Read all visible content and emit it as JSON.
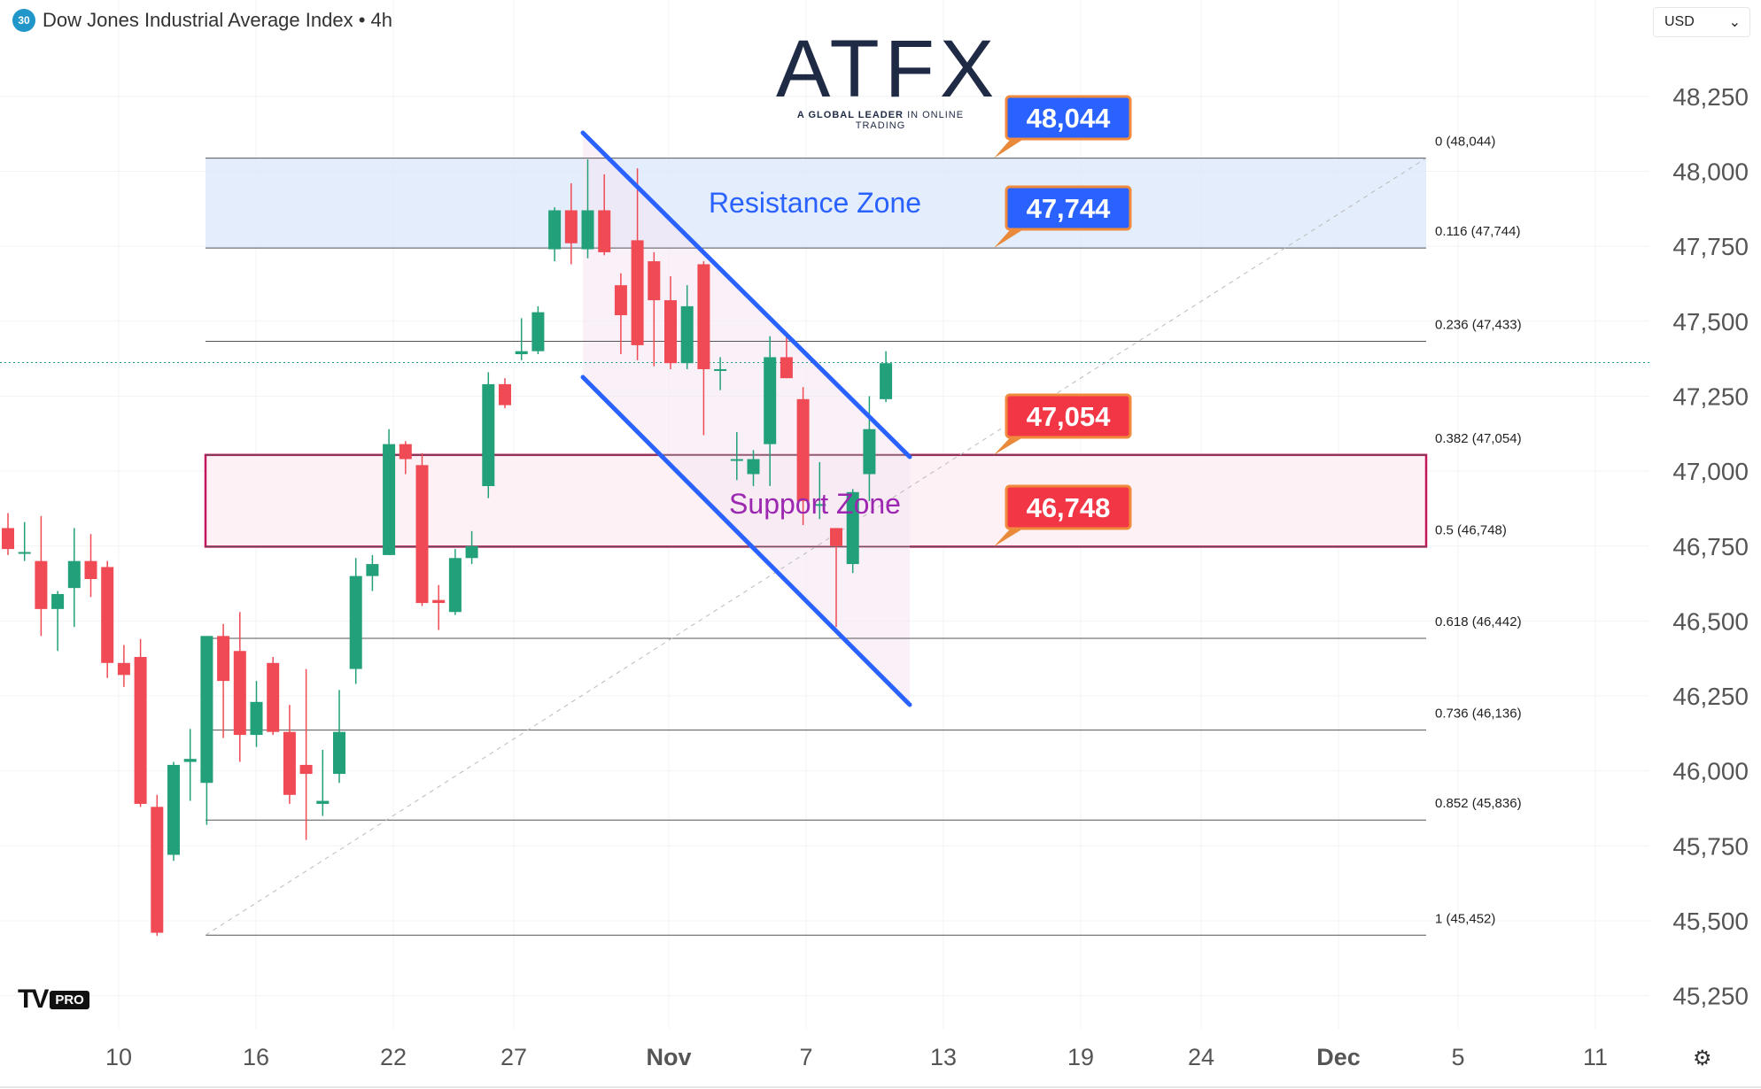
{
  "header": {
    "badge": "30",
    "symbol": "Dow Jones Industrial Average Index • 4h"
  },
  "currency": {
    "label": "USD"
  },
  "logo": {
    "wordmark": "ATFX",
    "tagline_bold": "A GLOBAL LEADER",
    "tagline_rest": " IN ONLINE TRADING"
  },
  "brand": {
    "tv_pro": "PRO"
  },
  "colors": {
    "up": "#22a079",
    "down": "#f04a55",
    "price_blue": "#2962ff",
    "price_red": "#f23645",
    "resistance_fill": "#dbe7fb",
    "support_border": "#c2185b",
    "support_fill": "#fdf1f5",
    "channel": "#2962ff",
    "support_text": "#9c27b0",
    "resistance_text": "#2962ff"
  },
  "chart_data": {
    "type": "candlestick",
    "timeframe": "4h",
    "y_axis": {
      "ticks": [
        48250,
        48000,
        47750,
        47500,
        47250,
        47000,
        46750,
        46500,
        46250,
        46000,
        45750,
        45500,
        45250
      ]
    },
    "x_axis": {
      "ticks": [
        "10",
        "16",
        "22",
        "27",
        "Nov",
        "7",
        "13",
        "19",
        "24",
        "Dec",
        "5",
        "11"
      ]
    },
    "candles": [
      {
        "o": 46810,
        "h": 46860,
        "l": 46720,
        "c": 46740
      },
      {
        "o": 46730,
        "h": 46830,
        "l": 46700,
        "c": 46730
      },
      {
        "o": 46700,
        "h": 46850,
        "l": 46450,
        "c": 46540
      },
      {
        "o": 46540,
        "h": 46600,
        "l": 46400,
        "c": 46590
      },
      {
        "o": 46610,
        "h": 46810,
        "l": 46480,
        "c": 46700
      },
      {
        "o": 46700,
        "h": 46790,
        "l": 46580,
        "c": 46640
      },
      {
        "o": 46680,
        "h": 46700,
        "l": 46310,
        "c": 46360
      },
      {
        "o": 46360,
        "h": 46420,
        "l": 46280,
        "c": 46320
      },
      {
        "o": 46380,
        "h": 46440,
        "l": 45880,
        "c": 45890
      },
      {
        "o": 45880,
        "h": 45920,
        "l": 45450,
        "c": 45460
      },
      {
        "o": 45720,
        "h": 46030,
        "l": 45700,
        "c": 46020
      },
      {
        "o": 46030,
        "h": 46140,
        "l": 45900,
        "c": 46040
      },
      {
        "o": 45960,
        "h": 46450,
        "l": 45820,
        "c": 46450
      },
      {
        "o": 46450,
        "h": 46490,
        "l": 46110,
        "c": 46300
      },
      {
        "o": 46400,
        "h": 46530,
        "l": 46030,
        "c": 46120
      },
      {
        "o": 46120,
        "h": 46300,
        "l": 46080,
        "c": 46230
      },
      {
        "o": 46360,
        "h": 46380,
        "l": 46120,
        "c": 46130
      },
      {
        "o": 46130,
        "h": 46220,
        "l": 45890,
        "c": 45920
      },
      {
        "o": 46020,
        "h": 46340,
        "l": 45770,
        "c": 45990
      },
      {
        "o": 45890,
        "h": 46070,
        "l": 45850,
        "c": 45900
      },
      {
        "o": 45990,
        "h": 46270,
        "l": 45960,
        "c": 46130
      },
      {
        "o": 46340,
        "h": 46710,
        "l": 46290,
        "c": 46650
      },
      {
        "o": 46650,
        "h": 46720,
        "l": 46600,
        "c": 46690
      },
      {
        "o": 46720,
        "h": 47140,
        "l": 46720,
        "c": 47090
      },
      {
        "o": 47090,
        "h": 47100,
        "l": 46990,
        "c": 47040
      },
      {
        "o": 47020,
        "h": 47060,
        "l": 46550,
        "c": 46560
      },
      {
        "o": 46570,
        "h": 46620,
        "l": 46470,
        "c": 46560
      },
      {
        "o": 46530,
        "h": 46740,
        "l": 46520,
        "c": 46710
      },
      {
        "o": 46710,
        "h": 46800,
        "l": 46690,
        "c": 46750
      },
      {
        "o": 46950,
        "h": 47330,
        "l": 46910,
        "c": 47290
      },
      {
        "o": 47290,
        "h": 47310,
        "l": 47210,
        "c": 47220
      },
      {
        "o": 47390,
        "h": 47510,
        "l": 47370,
        "c": 47400
      },
      {
        "o": 47400,
        "h": 47550,
        "l": 47390,
        "c": 47530
      },
      {
        "o": 47740,
        "h": 47880,
        "l": 47700,
        "c": 47870
      },
      {
        "o": 47870,
        "h": 47960,
        "l": 47690,
        "c": 47760
      },
      {
        "o": 47740,
        "h": 48040,
        "l": 47710,
        "c": 47870
      },
      {
        "o": 47870,
        "h": 47990,
        "l": 47720,
        "c": 47730
      },
      {
        "o": 47620,
        "h": 47660,
        "l": 47390,
        "c": 47520
      },
      {
        "o": 47770,
        "h": 48010,
        "l": 47370,
        "c": 47420
      },
      {
        "o": 47700,
        "h": 47730,
        "l": 47350,
        "c": 47570
      },
      {
        "o": 47570,
        "h": 47650,
        "l": 47340,
        "c": 47360
      },
      {
        "o": 47360,
        "h": 47620,
        "l": 47340,
        "c": 47550
      },
      {
        "o": 47690,
        "h": 47700,
        "l": 47120,
        "c": 47340
      },
      {
        "o": 47340,
        "h": 47380,
        "l": 47270,
        "c": 47340
      },
      {
        "o": 47040,
        "h": 47130,
        "l": 46970,
        "c": 47040
      },
      {
        "o": 46990,
        "h": 47070,
        "l": 46950,
        "c": 47040
      },
      {
        "o": 47090,
        "h": 47450,
        "l": 46950,
        "c": 47380
      },
      {
        "o": 47380,
        "h": 47460,
        "l": 47310,
        "c": 47310
      },
      {
        "o": 47240,
        "h": 47280,
        "l": 46820,
        "c": 46900
      },
      {
        "o": 46890,
        "h": 47030,
        "l": 46840,
        "c": 46890
      },
      {
        "o": 46810,
        "h": 46810,
        "l": 46480,
        "c": 46750
      },
      {
        "o": 46690,
        "h": 46940,
        "l": 46660,
        "c": 46930
      },
      {
        "o": 46990,
        "h": 47250,
        "l": 46900,
        "c": 47140
      },
      {
        "o": 47240,
        "h": 47400,
        "l": 47230,
        "c": 47360
      }
    ],
    "fib_levels": [
      {
        "label": "0 (48,044)",
        "value": 48044
      },
      {
        "label": "0.116 (47,744)",
        "value": 47744
      },
      {
        "label": "0.236 (47,433)",
        "value": 47433
      },
      {
        "label": "0.382 (47,054)",
        "value": 47054
      },
      {
        "label": "0.5 (46,748)",
        "value": 46748
      },
      {
        "label": "0.618 (46,442)",
        "value": 46442
      },
      {
        "label": "0.736 (46,136)",
        "value": 46136
      },
      {
        "label": "0.852 (45,836)",
        "value": 45836
      },
      {
        "label": "1 (45,452)",
        "value": 45452
      }
    ],
    "zones": [
      {
        "name": "Resistance Zone",
        "top": 48044,
        "bottom": 47744
      },
      {
        "name": "Support Zone",
        "top": 47054,
        "bottom": 46748
      }
    ],
    "price_labels": [
      {
        "text": "48,044",
        "value": 48044,
        "color": "blue"
      },
      {
        "text": "47,744",
        "value": 47744,
        "color": "blue"
      },
      {
        "text": "47,054",
        "value": 47054,
        "color": "red"
      },
      {
        "text": "46,748",
        "value": 46748,
        "color": "red"
      }
    ],
    "current_price": 47362
  }
}
